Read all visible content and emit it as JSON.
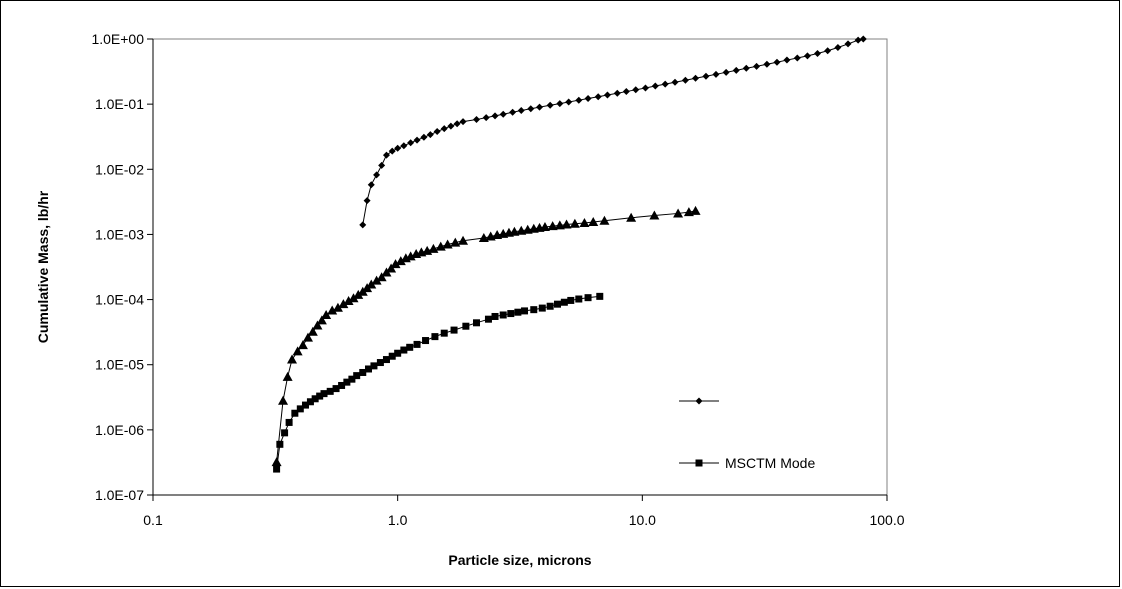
{
  "chart_data": {
    "type": "scatter",
    "xlabel": "Particle size, microns",
    "ylabel": "Cumulative Mass, lb/hr",
    "xscale": "log",
    "yscale": "log",
    "xlim": [
      0.1,
      100
    ],
    "ylim": [
      1e-07,
      1
    ],
    "x_tick_values": [
      0.1,
      1,
      10,
      100
    ],
    "x_tick_labels": [
      "0.1",
      "1.0",
      "10.0",
      "100.0"
    ],
    "y_tick_values": [
      1e-07,
      1e-06,
      1e-05,
      0.0001,
      0.001,
      0.01,
      0.1,
      1
    ],
    "y_tick_labels": [
      "1.0E-07",
      "1.0E-06",
      "1.0E-05",
      "1.0E-04",
      "1.0E-03",
      "1.0E-02",
      "1.0E-01",
      "1.0E+00"
    ],
    "grid": false,
    "legend_position": "bottom-right",
    "series": [
      {
        "name": "",
        "marker": "diamond",
        "color": "#000000",
        "points": [
          [
            0.72,
            0.0014
          ],
          [
            0.75,
            0.0033
          ],
          [
            0.78,
            0.0058
          ],
          [
            0.82,
            0.0082
          ],
          [
            0.86,
            0.0115
          ],
          [
            0.9,
            0.0165
          ],
          [
            0.95,
            0.019
          ],
          [
            1.0,
            0.021
          ],
          [
            1.06,
            0.023
          ],
          [
            1.13,
            0.0255
          ],
          [
            1.2,
            0.028
          ],
          [
            1.28,
            0.031
          ],
          [
            1.36,
            0.034
          ],
          [
            1.45,
            0.038
          ],
          [
            1.55,
            0.042
          ],
          [
            1.65,
            0.046
          ],
          [
            1.75,
            0.05
          ],
          [
            1.85,
            0.054
          ],
          [
            2.1,
            0.058
          ],
          [
            2.3,
            0.062
          ],
          [
            2.5,
            0.066
          ],
          [
            2.7,
            0.07
          ],
          [
            2.95,
            0.075
          ],
          [
            3.2,
            0.08
          ],
          [
            3.5,
            0.085
          ],
          [
            3.8,
            0.09
          ],
          [
            4.2,
            0.096
          ],
          [
            4.6,
            0.102
          ],
          [
            5.0,
            0.108
          ],
          [
            5.5,
            0.115
          ],
          [
            6.0,
            0.122
          ],
          [
            6.6,
            0.13
          ],
          [
            7.2,
            0.138
          ],
          [
            7.9,
            0.147
          ],
          [
            8.6,
            0.156
          ],
          [
            9.4,
            0.166
          ],
          [
            10.3,
            0.177
          ],
          [
            11.3,
            0.19
          ],
          [
            12.4,
            0.203
          ],
          [
            13.6,
            0.217
          ],
          [
            15.0,
            0.233
          ],
          [
            16.5,
            0.25
          ],
          [
            18.2,
            0.268
          ],
          [
            20.0,
            0.287
          ],
          [
            22.0,
            0.308
          ],
          [
            24.2,
            0.33
          ],
          [
            26.6,
            0.355
          ],
          [
            29.3,
            0.38
          ],
          [
            32.3,
            0.41
          ],
          [
            35.5,
            0.44
          ],
          [
            39.0,
            0.475
          ],
          [
            43.0,
            0.51
          ],
          [
            47.3,
            0.55
          ],
          [
            52.0,
            0.6
          ],
          [
            57.2,
            0.66
          ],
          [
            63.0,
            0.74
          ],
          [
            69.3,
            0.84
          ],
          [
            76.2,
            0.96
          ],
          [
            80.0,
            1.0
          ]
        ]
      },
      {
        "name": "",
        "marker": "triangle",
        "color": "#000000",
        "points": [
          [
            0.32,
            3.2e-07
          ],
          [
            0.34,
            2.8e-06
          ],
          [
            0.355,
            6.5e-06
          ],
          [
            0.37,
            1.2e-05
          ],
          [
            0.39,
            1.6e-05
          ],
          [
            0.41,
            2e-05
          ],
          [
            0.43,
            2.6e-05
          ],
          [
            0.45,
            3.2e-05
          ],
          [
            0.47,
            4e-05
          ],
          [
            0.49,
            4.8e-05
          ],
          [
            0.51,
            5.8e-05
          ],
          [
            0.54,
            6.8e-05
          ],
          [
            0.57,
            7.5e-05
          ],
          [
            0.6,
            8.5e-05
          ],
          [
            0.63,
            9.5e-05
          ],
          [
            0.66,
            0.000105
          ],
          [
            0.69,
            0.000118
          ],
          [
            0.72,
            0.000132
          ],
          [
            0.75,
            0.00015
          ],
          [
            0.78,
            0.00017
          ],
          [
            0.82,
            0.000195
          ],
          [
            0.86,
            0.00022
          ],
          [
            0.9,
            0.00026
          ],
          [
            0.94,
            0.0003
          ],
          [
            0.98,
            0.00035
          ],
          [
            1.03,
            0.00039
          ],
          [
            1.08,
            0.00043
          ],
          [
            1.13,
            0.00046
          ],
          [
            1.19,
            0.0005
          ],
          [
            1.25,
            0.00053
          ],
          [
            1.32,
            0.00056
          ],
          [
            1.4,
            0.0006
          ],
          [
            1.5,
            0.00065
          ],
          [
            1.6,
            0.0007
          ],
          [
            1.72,
            0.00075
          ],
          [
            1.85,
            0.0008
          ],
          [
            2.25,
            0.00088
          ],
          [
            2.4,
            0.00093
          ],
          [
            2.55,
            0.00098
          ],
          [
            2.7,
            0.00102
          ],
          [
            2.85,
            0.00106
          ],
          [
            3.0,
            0.0011
          ],
          [
            3.2,
            0.00114
          ],
          [
            3.4,
            0.00118
          ],
          [
            3.6,
            0.00122
          ],
          [
            3.8,
            0.00126
          ],
          [
            4.0,
            0.0013
          ],
          [
            4.3,
            0.00134
          ],
          [
            4.6,
            0.00138
          ],
          [
            4.9,
            0.00142
          ],
          [
            5.3,
            0.00146
          ],
          [
            5.8,
            0.0015
          ],
          [
            6.3,
            0.00155
          ],
          [
            7.0,
            0.00162
          ],
          [
            9.0,
            0.0018
          ],
          [
            11.2,
            0.00195
          ],
          [
            14.0,
            0.0021
          ],
          [
            15.5,
            0.0022
          ],
          [
            16.5,
            0.0023
          ]
        ]
      },
      {
        "name": "MSCTM Mode",
        "marker": "square",
        "color": "#000000",
        "points": [
          [
            0.32,
            2.5e-07
          ],
          [
            0.33,
            6e-07
          ],
          [
            0.345,
            9e-07
          ],
          [
            0.36,
            1.3e-06
          ],
          [
            0.38,
            1.8e-06
          ],
          [
            0.4,
            2.1e-06
          ],
          [
            0.42,
            2.4e-06
          ],
          [
            0.44,
            2.7e-06
          ],
          [
            0.46,
            3e-06
          ],
          [
            0.48,
            3.3e-06
          ],
          [
            0.5,
            3.6e-06
          ],
          [
            0.53,
            3.9e-06
          ],
          [
            0.56,
            4.3e-06
          ],
          [
            0.59,
            4.8e-06
          ],
          [
            0.62,
            5.4e-06
          ],
          [
            0.65,
            6e-06
          ],
          [
            0.68,
            6.8e-06
          ],
          [
            0.72,
            7.6e-06
          ],
          [
            0.76,
            8.6e-06
          ],
          [
            0.8,
            9.6e-06
          ],
          [
            0.85,
            1.08e-05
          ],
          [
            0.9,
            1.2e-05
          ],
          [
            0.95,
            1.35e-05
          ],
          [
            1.0,
            1.5e-05
          ],
          [
            1.06,
            1.68e-05
          ],
          [
            1.12,
            1.85e-05
          ],
          [
            1.2,
            2.05e-05
          ],
          [
            1.3,
            2.35e-05
          ],
          [
            1.42,
            2.7e-05
          ],
          [
            1.55,
            3.05e-05
          ],
          [
            1.7,
            3.4e-05
          ],
          [
            1.9,
            3.9e-05
          ],
          [
            2.1,
            4.4e-05
          ],
          [
            2.35,
            5e-05
          ],
          [
            2.5,
            5.5e-05
          ],
          [
            2.7,
            5.8e-05
          ],
          [
            2.9,
            6.1e-05
          ],
          [
            3.1,
            6.4e-05
          ],
          [
            3.3,
            6.7e-05
          ],
          [
            3.6,
            7e-05
          ],
          [
            3.9,
            7.4e-05
          ],
          [
            4.2,
            7.9e-05
          ],
          [
            4.5,
            8.5e-05
          ],
          [
            4.8,
            9.1e-05
          ],
          [
            5.1,
            9.7e-05
          ],
          [
            5.5,
            0.000102
          ],
          [
            6.0,
            0.000107
          ],
          [
            6.7,
            0.000112
          ]
        ]
      }
    ]
  }
}
